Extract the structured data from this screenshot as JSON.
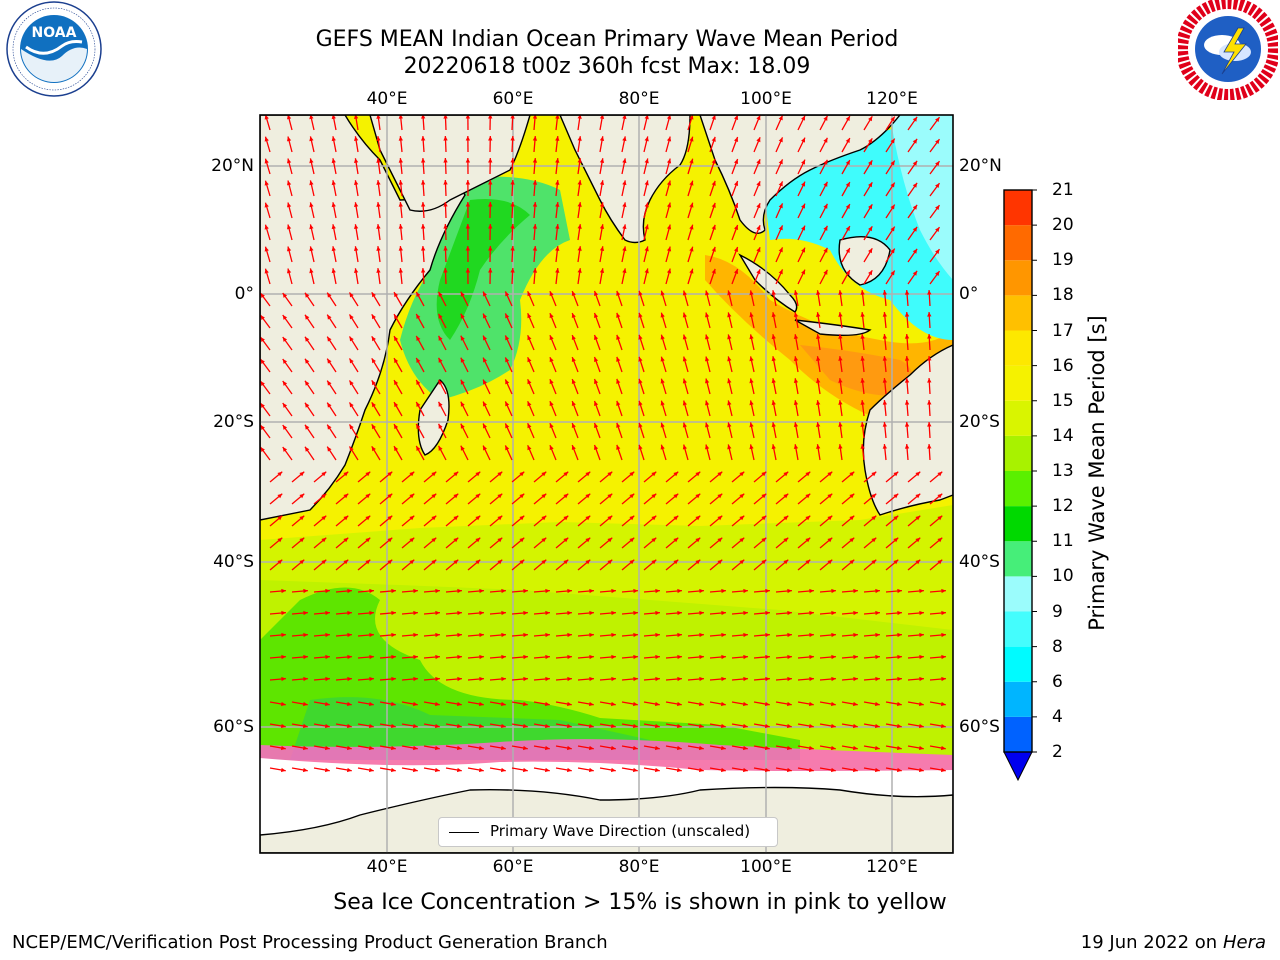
{
  "header": {
    "title_line1": "GEFS MEAN Indian Ocean Primary Wave Mean Period",
    "title_line2": "20220618 t00z 360h fcst   Max: 18.09"
  },
  "logos": {
    "left": {
      "icon": "noaa-logo",
      "text": "NOAA",
      "ring_text": "NATIONAL OCEANIC AND ATMOSPHERIC ADMINISTRATION · U.S. DEPARTMENT OF COMMERCE"
    },
    "right": {
      "icon": "national-weather-service-logo",
      "ring_text": "NATIONAL WEATHER SERVICE"
    }
  },
  "map": {
    "projection": "plate-carree",
    "lon_range": [
      20,
      130
    ],
    "lat_range": [
      -73,
      28
    ],
    "lon_ticks": [
      "40°E",
      "60°E",
      "80°E",
      "100°E",
      "120°E"
    ],
    "lat_ticks": [
      "20°N",
      "0°",
      "20°S",
      "40°S",
      "60°S"
    ],
    "grid": true,
    "land_color": "#efeedf",
    "arrow_color": "#ff0000",
    "arrow_meaning": "primary wave direction (unscaled)"
  },
  "colorbar": {
    "label": "Primary Wave Mean Period [s]",
    "ticks": [
      "2",
      "4",
      "6",
      "8",
      "9",
      "10",
      "11",
      "12",
      "13",
      "14",
      "15",
      "16",
      "17",
      "18",
      "19",
      "20",
      "21"
    ],
    "colors": [
      "#0062ff",
      "#00b5ff",
      "#00fbff",
      "#44fdfd",
      "#9bfcfc",
      "#46ee79",
      "#00d900",
      "#5af000",
      "#a8f200",
      "#d9f500",
      "#f5f200",
      "#fde800",
      "#ffc000",
      "#ff9600",
      "#ff6a00",
      "#ff3500",
      "#ff0000"
    ],
    "extend": "min",
    "under_color": "#0000ee"
  },
  "legend": {
    "label": "Primary Wave Direction (unscaled)",
    "placement": "bottom-center"
  },
  "notes": {
    "sea_ice": "Sea Ice Concentration > 15% is shown in pink to yellow"
  },
  "footer": {
    "left": "NCEP/EMC/Verification Post Processing Product Generation Branch",
    "date": "19 Jun 2022 on",
    "machine": "Hera"
  }
}
